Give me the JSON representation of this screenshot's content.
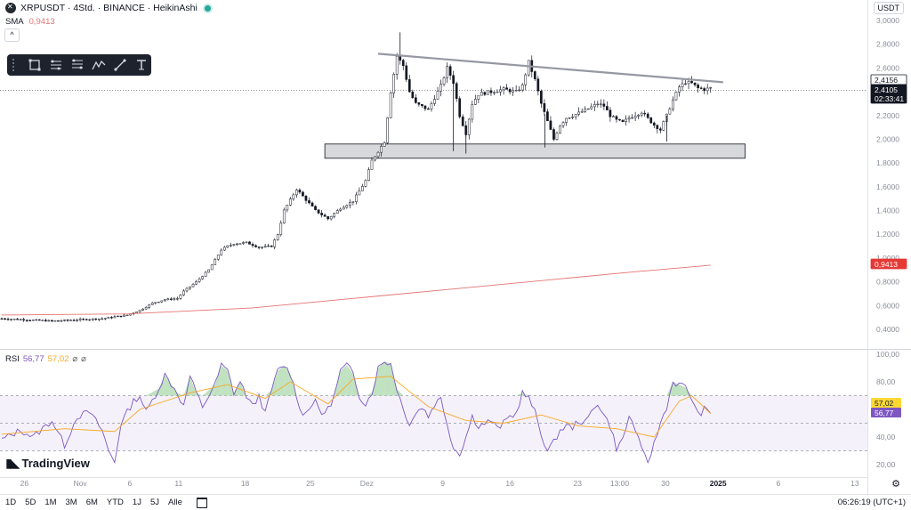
{
  "header": {
    "title": "XRPUSDT · 4Std. · BINANCE · HeikinAshi",
    "sma_label": "SMA",
    "sma_value": "0,9413",
    "collapse_glyph": "^",
    "currency_button": "USDT"
  },
  "rsi": {
    "label": "RSI",
    "value": "56,77",
    "ma_value": "57,02",
    "extra1": "⌀",
    "extra2": "⌀"
  },
  "logo": {
    "text": "TradingView"
  },
  "bottom": {
    "timeframes": [
      "1D",
      "5D",
      "1M",
      "3M",
      "6M",
      "YTD",
      "1J",
      "5J",
      "Alle"
    ],
    "clock": "06:26:19 (UTC+1)"
  },
  "toolbar": {
    "tools": [
      "rectangle-icon",
      "channel-icon",
      "fib-icon",
      "pattern-icon",
      "trendline-icon",
      "text-tool-icon"
    ]
  },
  "colors": {
    "sma": "#e57373",
    "rsi": "#7e57c2",
    "rsi_ma": "#f9a825",
    "trend": "#9598a1",
    "up": "#131722",
    "down": "#131722"
  },
  "chart_data": [
    {
      "type": "candlestick",
      "style": "HeikinAshi",
      "y_axis": {
        "ticks": [
          "3,0000",
          "2,8000",
          "2,6000",
          "2,4000",
          "2,2000",
          "2,0000",
          "1,8000",
          "1,6000",
          "1,4000",
          "1,2000",
          "1,0000",
          "0,8000",
          "0,6000",
          "0,4000"
        ],
        "ylim": [
          0.3,
          3.0
        ]
      },
      "x_axis": {
        "ticks": [
          "26",
          "Nov",
          "6",
          "11",
          "18",
          "25",
          "Dez",
          "9",
          "16",
          "23",
          "13:00",
          "30",
          "2025",
          "6",
          "13"
        ]
      },
      "price_path": [
        [
          0,
          0.49
        ],
        [
          4,
          0.48
        ],
        [
          8,
          0.47
        ],
        [
          12,
          0.48
        ],
        [
          16,
          0.49
        ],
        [
          20,
          0.52
        ],
        [
          22,
          0.56
        ],
        [
          24,
          0.62
        ],
        [
          26,
          0.65
        ],
        [
          28,
          0.66
        ],
        [
          29,
          0.72
        ],
        [
          31,
          0.8
        ],
        [
          33,
          0.9
        ],
        [
          35,
          1.07
        ],
        [
          36,
          1.1
        ],
        [
          37,
          1.12
        ],
        [
          39,
          1.13
        ],
        [
          41,
          1.09
        ],
        [
          43,
          1.1
        ],
        [
          44,
          1.2
        ],
        [
          45,
          1.4
        ],
        [
          47,
          1.58
        ],
        [
          48,
          1.52
        ],
        [
          50,
          1.4
        ],
        [
          52,
          1.33
        ],
        [
          54,
          1.42
        ],
        [
          56,
          1.48
        ],
        [
          58,
          1.65
        ],
        [
          59,
          1.82
        ],
        [
          60,
          1.9
        ],
        [
          61,
          1.98
        ],
        [
          62,
          2.4
        ],
        [
          63,
          2.7
        ],
        [
          64,
          2.62
        ],
        [
          65,
          2.4
        ],
        [
          66,
          2.3
        ],
        [
          68,
          2.25
        ],
        [
          70,
          2.45
        ],
        [
          71,
          2.6
        ],
        [
          72,
          2.48
        ],
        [
          73,
          2.2
        ],
        [
          74,
          2.05
        ],
        [
          75,
          2.3
        ],
        [
          76,
          2.38
        ],
        [
          78,
          2.4
        ],
        [
          80,
          2.42
        ],
        [
          82,
          2.4
        ],
        [
          83,
          2.45
        ],
        [
          84,
          2.65
        ],
        [
          85,
          2.5
        ],
        [
          86,
          2.3
        ],
        [
          87,
          2.15
        ],
        [
          88,
          2.0
        ],
        [
          89,
          2.12
        ],
        [
          90,
          2.18
        ],
        [
          92,
          2.22
        ],
        [
          94,
          2.27
        ],
        [
          95,
          2.3
        ],
        [
          96,
          2.28
        ],
        [
          97,
          2.2
        ],
        [
          98,
          2.16
        ],
        [
          99,
          2.14
        ],
        [
          100,
          2.18
        ],
        [
          102,
          2.23
        ],
        [
          104,
          2.12
        ],
        [
          105,
          2.08
        ],
        [
          106,
          2.2
        ],
        [
          107,
          2.33
        ],
        [
          108,
          2.44
        ],
        [
          109,
          2.48
        ],
        [
          110,
          2.47
        ],
        [
          111,
          2.43
        ],
        [
          112,
          2.42
        ],
        [
          113,
          2.43
        ]
      ],
      "overlays": {
        "sma_path": [
          [
            0,
            0.52
          ],
          [
            20,
            0.53
          ],
          [
            40,
            0.58
          ],
          [
            60,
            0.68
          ],
          [
            80,
            0.78
          ],
          [
            100,
            0.88
          ],
          [
            113,
            0.94
          ]
        ],
        "resistance_trendline": [
          [
            60,
            2.72
          ],
          [
            115,
            2.48
          ]
        ],
        "support_zone": [
          1.84,
          1.96
        ],
        "current_price_line": 2.4105
      },
      "price_labels": [
        {
          "text": "2,4156",
          "style": "outline"
        },
        {
          "text": "2,4105",
          "style": "dark"
        },
        {
          "text": "02:33:41",
          "style": "dark"
        },
        {
          "text": "0,9413",
          "style": "red"
        }
      ]
    },
    {
      "type": "line",
      "title": "RSI",
      "y_axis": {
        "ticks": [
          "100,00",
          "80,00",
          "60,00",
          "40,00",
          "20,00"
        ],
        "ylim": [
          15,
          100
        ]
      },
      "bands": {
        "upper": 70,
        "middle": 50,
        "lower": 30
      },
      "series": [
        {
          "name": "RSI",
          "values": [
            [
              0,
              38
            ],
            [
              3,
              45
            ],
            [
              5,
              40
            ],
            [
              8,
              52
            ],
            [
              10,
              34
            ],
            [
              12,
              55
            ],
            [
              14,
              58
            ],
            [
              16,
              45
            ],
            [
              17,
              30
            ],
            [
              18,
              22
            ],
            [
              19,
              50
            ],
            [
              21,
              66
            ],
            [
              22,
              70
            ],
            [
              23,
              58
            ],
            [
              25,
              75
            ],
            [
              26,
              85
            ],
            [
              28,
              72
            ],
            [
              29,
              62
            ],
            [
              30,
              84
            ],
            [
              31,
              72
            ],
            [
              32,
              62
            ],
            [
              34,
              78
            ],
            [
              35,
              92
            ],
            [
              36,
              88
            ],
            [
              37,
              72
            ],
            [
              38,
              80
            ],
            [
              39,
              70
            ],
            [
              40,
              62
            ],
            [
              41,
              70
            ],
            [
              42,
              57
            ],
            [
              43,
              74
            ],
            [
              44,
              88
            ],
            [
              45,
              92
            ],
            [
              46,
              86
            ],
            [
              47,
              70
            ],
            [
              48,
              55
            ],
            [
              49,
              62
            ],
            [
              50,
              65
            ],
            [
              51,
              57
            ],
            [
              52,
              60
            ],
            [
              53,
              70
            ],
            [
              54,
              88
            ],
            [
              55,
              92
            ],
            [
              56,
              86
            ],
            [
              57,
              70
            ],
            [
              58,
              64
            ],
            [
              59,
              72
            ],
            [
              60,
              90
            ],
            [
              61,
              95
            ],
            [
              62,
              93
            ],
            [
              63,
              75
            ],
            [
              64,
              60
            ],
            [
              65,
              50
            ],
            [
              66,
              57
            ],
            [
              67,
              62
            ],
            [
              68,
              55
            ],
            [
              69,
              64
            ],
            [
              70,
              68
            ],
            [
              71,
              50
            ],
            [
              72,
              32
            ],
            [
              73,
              28
            ],
            [
              74,
              40
            ],
            [
              75,
              55
            ],
            [
              76,
              48
            ],
            [
              77,
              50
            ],
            [
              78,
              52
            ],
            [
              79,
              46
            ],
            [
              80,
              50
            ],
            [
              81,
              55
            ],
            [
              82,
              57
            ],
            [
              83,
              72
            ],
            [
              84,
              68
            ],
            [
              85,
              58
            ],
            [
              86,
              42
            ],
            [
              87,
              30
            ],
            [
              88,
              36
            ],
            [
              89,
              45
            ],
            [
              90,
              48
            ],
            [
              91,
              47
            ],
            [
              92,
              52
            ],
            [
              93,
              50
            ],
            [
              94,
              58
            ],
            [
              95,
              65
            ],
            [
              96,
              56
            ],
            [
              97,
              48
            ],
            [
              98,
              32
            ],
            [
              99,
              38
            ],
            [
              100,
              55
            ],
            [
              101,
              46
            ],
            [
              102,
              30
            ],
            [
              103,
              22
            ],
            [
              104,
              35
            ],
            [
              105,
              50
            ],
            [
              106,
              62
            ],
            [
              107,
              80
            ],
            [
              108,
              78
            ],
            [
              109,
              76
            ],
            [
              110,
              68
            ],
            [
              111,
              56
            ],
            [
              112,
              60
            ],
            [
              113,
              56.77
            ]
          ]
        },
        {
          "name": "RSI MA",
          "values": [
            [
              0,
              42
            ],
            [
              10,
              46
            ],
            [
              18,
              44
            ],
            [
              22,
              60
            ],
            [
              30,
              72
            ],
            [
              36,
              78
            ],
            [
              42,
              68
            ],
            [
              46,
              80
            ],
            [
              52,
              64
            ],
            [
              56,
              82
            ],
            [
              62,
              84
            ],
            [
              68,
              62
            ],
            [
              74,
              52
            ],
            [
              80,
              50
            ],
            [
              86,
              56
            ],
            [
              92,
              48
            ],
            [
              98,
              46
            ],
            [
              104,
              40
            ],
            [
              108,
              66
            ],
            [
              110,
              70
            ],
            [
              113,
              57.02
            ]
          ]
        }
      ],
      "value_labels": [
        {
          "text": "57,02",
          "style": "yellow"
        },
        {
          "text": "56,77",
          "style": "purple"
        }
      ]
    }
  ]
}
